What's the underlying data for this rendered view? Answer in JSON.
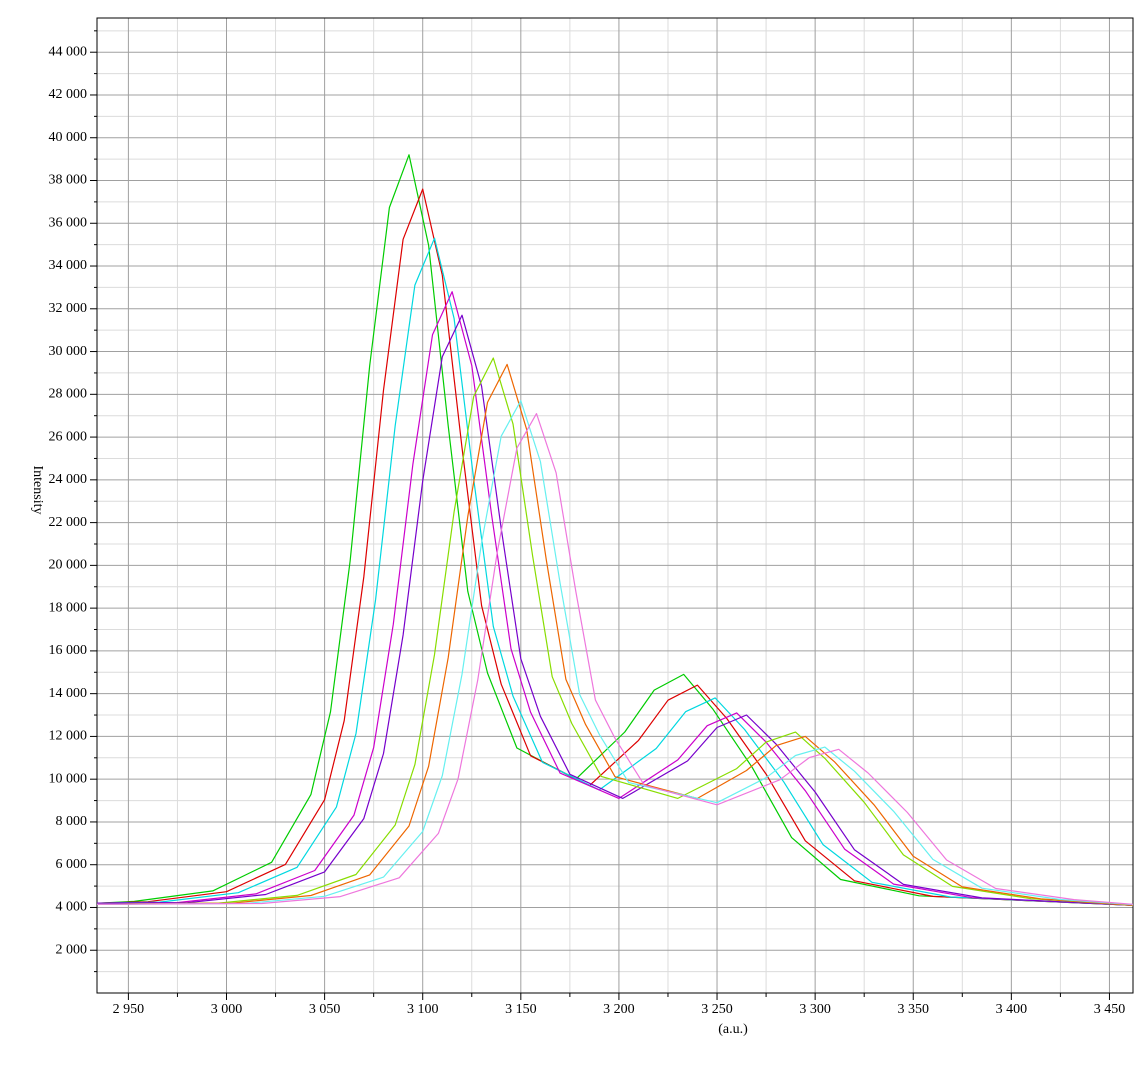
{
  "chart_data": {
    "type": "line",
    "ylabel": "Intensity",
    "xlabel": "(a.u.)",
    "xlim": [
      2934,
      3462
    ],
    "ylim": [
      0,
      45600
    ],
    "xticks": [
      {
        "value": 2950,
        "label": "2 950"
      },
      {
        "value": 3000,
        "label": "3 000"
      },
      {
        "value": 3050,
        "label": "3 050"
      },
      {
        "value": 3100,
        "label": "3 100"
      },
      {
        "value": 3150,
        "label": "3 150"
      },
      {
        "value": 3200,
        "label": "3 200"
      },
      {
        "value": 3250,
        "label": "3 250"
      },
      {
        "value": 3300,
        "label": "3 300"
      },
      {
        "value": 3350,
        "label": "3 350"
      },
      {
        "value": 3400,
        "label": "3 400"
      },
      {
        "value": 3450,
        "label": "3 450"
      }
    ],
    "yticks": [
      {
        "value": 2000,
        "label": "2 000"
      },
      {
        "value": 4000,
        "label": "4 000"
      },
      {
        "value": 6000,
        "label": "6 000"
      },
      {
        "value": 8000,
        "label": "8 000"
      },
      {
        "value": 10000,
        "label": "10 000"
      },
      {
        "value": 12000,
        "label": "12 000"
      },
      {
        "value": 14000,
        "label": "14 000"
      },
      {
        "value": 16000,
        "label": "16 000"
      },
      {
        "value": 18000,
        "label": "18 000"
      },
      {
        "value": 20000,
        "label": "20 000"
      },
      {
        "value": 22000,
        "label": "22 000"
      },
      {
        "value": 24000,
        "label": "24 000"
      },
      {
        "value": 26000,
        "label": "26 000"
      },
      {
        "value": 28000,
        "label": "28 000"
      },
      {
        "value": 30000,
        "label": "30 000"
      },
      {
        "value": 32000,
        "label": "32 000"
      },
      {
        "value": 34000,
        "label": "34 000"
      },
      {
        "value": 36000,
        "label": "36 000"
      },
      {
        "value": 38000,
        "label": "38 000"
      },
      {
        "value": 40000,
        "label": "40 000"
      },
      {
        "value": 42000,
        "label": "42 000"
      },
      {
        "value": 44000,
        "label": "44 000"
      }
    ],
    "xminorticks": [
      2975,
      3025,
      3075,
      3125,
      3175,
      3225,
      3275,
      3325,
      3375,
      3425
    ],
    "yminorticks": [
      1000,
      3000,
      5000,
      7000,
      9000,
      11000,
      13000,
      15000,
      17000,
      19000,
      21000,
      23000,
      25000,
      27000,
      29000,
      31000,
      33000,
      35000,
      37000,
      39000,
      41000,
      43000,
      45000
    ],
    "grid": true,
    "series": [
      {
        "color": "#00cc00",
        "x": [
          2934,
          2953,
          2993,
          3023,
          3043,
          3053,
          3063,
          3073,
          3083,
          3093,
          3103,
          3113,
          3123,
          3133,
          3148,
          3178,
          3203,
          3218,
          3233,
          3248,
          3268,
          3288,
          3313,
          3353,
          3462
        ],
        "values": [
          4200,
          4282,
          4774,
          6112,
          9280,
          13152,
          20192,
          29344,
          36736,
          39200,
          34976,
          26528,
          18784,
          14964,
          11460,
          10000,
          12205,
          14165,
          14900,
          13265,
          10540,
          7270,
          5308,
          4545,
          4100
        ]
      },
      {
        "color": "#dd0000",
        "x": [
          2934,
          2960,
          3000,
          3030,
          3050,
          3060,
          3070,
          3080,
          3090,
          3100,
          3110,
          3120,
          3130,
          3140,
          3155,
          3185,
          3210,
          3225,
          3240,
          3255,
          3275,
          3295,
          3320,
          3360,
          3462
        ],
        "values": [
          4200,
          4269,
          4739,
          6016,
          9040,
          12736,
          19456,
          28192,
          35248,
          37600,
          33568,
          25504,
          18112,
          14443,
          11095,
          9700,
          11815,
          13695,
          14400,
          12840,
          10240,
          7120,
          5248,
          4520,
          4100
        ]
      },
      {
        "color": "#00d8e0",
        "x": [
          2934,
          2966,
          3006,
          3036,
          3056,
          3066,
          3076,
          3086,
          3096,
          3106,
          3116,
          3126,
          3136,
          3146,
          3161,
          3190,
          3219,
          3234,
          3249,
          3264,
          3284,
          3304,
          3329,
          3369,
          3462
        ],
        "values": [
          4200,
          4250,
          4689,
          5878,
          8695,
          12138,
          18398,
          26536,
          33109,
          35300,
          31544,
          24032,
          17146,
          13886,
          10790,
          9500,
          11435,
          13155,
          13800,
          12330,
          9880,
          6940,
          5176,
          4490,
          4100
        ]
      },
      {
        "color": "#cc00cc",
        "x": [
          2934,
          2975,
          3015,
          3045,
          3065,
          3075,
          3085,
          3095,
          3105,
          3115,
          3125,
          3135,
          3145,
          3155,
          3170,
          3200,
          3230,
          3245,
          3260,
          3275,
          3295,
          3315,
          3340,
          3380,
          3462
        ],
        "values": [
          4200,
          4230,
          4634,
          5728,
          8320,
          11488,
          17248,
          24736,
          30784,
          32800,
          29344,
          22432,
          16096,
          13129,
          10285,
          9100,
          10900,
          12500,
          13100,
          11735,
          9460,
          6730,
          5092,
          4455,
          4100
        ]
      },
      {
        "color": "#7700cc",
        "x": [
          2934,
          2980,
          3020,
          3050,
          3070,
          3080,
          3090,
          3100,
          3110,
          3120,
          3130,
          3140,
          3150,
          3160,
          3175,
          3202,
          3235,
          3250,
          3265,
          3280,
          3300,
          3320,
          3345,
          3385,
          3462
        ],
        "values": [
          4200,
          4222,
          4609,
          5662,
          8155,
          11202,
          16742,
          23944,
          29761,
          31700,
          28376,
          21728,
          15634,
          12942,
          10230,
          9100,
          10855,
          12415,
          13000,
          11650,
          9400,
          6700,
          5080,
          4450,
          4100
        ]
      },
      {
        "color": "#88dd00",
        "x": [
          2934,
          2996,
          3036,
          3066,
          3086,
          3096,
          3106,
          3116,
          3126,
          3136,
          3146,
          3156,
          3166,
          3176,
          3191,
          3230,
          3260,
          3275,
          3290,
          3305,
          3325,
          3345,
          3370,
          3410,
          3462
        ],
        "values": [
          4150,
          4206,
          4565,
          5542,
          7855,
          10682,
          15822,
          22504,
          27901,
          29700,
          26616,
          20448,
          14794,
          12602,
          10130,
          9100,
          10495,
          11735,
          12200,
          10970,
          8920,
          6460,
          4984,
          4410,
          4100
        ]
      },
      {
        "color": "#ee6600",
        "x": [
          2934,
          3003,
          3043,
          3073,
          3093,
          3103,
          3113,
          3123,
          3133,
          3143,
          3153,
          3163,
          3173,
          3183,
          3198,
          3240,
          3265,
          3280,
          3295,
          3310,
          3330,
          3350,
          3375,
          3415,
          3462
        ],
        "values": [
          4150,
          4203,
          4559,
          5524,
          7810,
          10604,
          15684,
          22288,
          27622,
          29400,
          26352,
          20256,
          14668,
          12551,
          10115,
          9100,
          10405,
          11565,
          12000,
          10800,
          8800,
          6400,
          4960,
          4400,
          4100
        ]
      },
      {
        "color": "#66f0f0",
        "x": [
          2934,
          3010,
          3050,
          3080,
          3100,
          3110,
          3120,
          3130,
          3140,
          3150,
          3160,
          3170,
          3180,
          3190,
          3205,
          3250,
          3275,
          3290,
          3305,
          3320,
          3340,
          3360,
          3385,
          3425,
          3462
        ],
        "values": [
          4150,
          4190,
          4521,
          5422,
          7555,
          10162,
          14902,
          21064,
          26041,
          27700,
          24856,
          19168,
          13954,
          12096,
          9840,
          8900,
          10070,
          11110,
          11500,
          10375,
          8500,
          6250,
          4900,
          4375,
          4130
        ]
      },
      {
        "color": "#ee77dd",
        "x": [
          2934,
          3018,
          3058,
          3088,
          3108,
          3118,
          3128,
          3138,
          3148,
          3158,
          3168,
          3178,
          3188,
          3198,
          3213,
          3250,
          3282,
          3297,
          3312,
          3327,
          3347,
          3367,
          3392,
          3432,
          3462
        ],
        "values": [
          4150,
          4185,
          4508,
          5386,
          7465,
          10006,
          14626,
          20632,
          25483,
          27100,
          24328,
          18784,
          13702,
          11911,
          9715,
          8800,
          9970,
          11010,
          11400,
          10290,
          8440,
          6220,
          4888,
          4370,
          4150
        ]
      }
    ]
  }
}
